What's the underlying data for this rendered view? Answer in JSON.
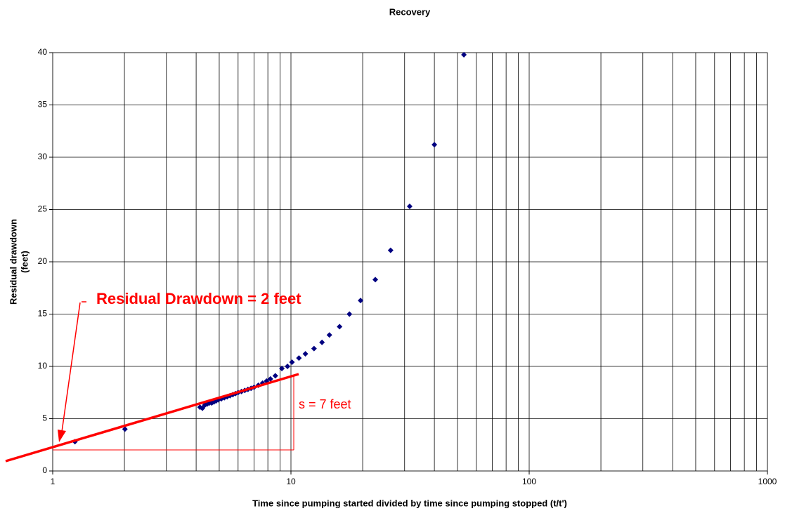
{
  "chart_data": {
    "type": "scatter",
    "title": "Recovery",
    "xlabel": "Time since pumping started divided by time since pumping stopped (t/t')",
    "ylabel": [
      "Residual drawdown",
      "(feet)"
    ],
    "xscale": "log",
    "xlim": [
      1,
      1000
    ],
    "xticks": [
      1,
      10,
      100,
      1000
    ],
    "xminor": true,
    "ylim": [
      0,
      40
    ],
    "yticks": [
      0,
      5,
      10,
      15,
      20,
      25,
      30,
      35,
      40
    ],
    "grid": true,
    "annotations": [
      "Residual Drawdown = 2 feet",
      "s = 7 feet"
    ],
    "series": [
      {
        "name": "Recovery",
        "color": "#000080",
        "x": [
          1.24,
          2.01,
          4.15,
          4.25,
          4.35,
          4.45,
          4.55,
          4.65,
          4.75,
          4.85,
          4.95,
          5.1,
          5.25,
          5.4,
          5.55,
          5.7,
          5.85,
          6.0,
          6.2,
          6.4,
          6.6,
          6.8,
          7.0,
          7.3,
          7.6,
          7.9,
          8.2,
          8.6,
          9.16,
          9.67,
          10.1,
          10.8,
          11.5,
          12.5,
          13.5,
          14.5,
          16.0,
          17.6,
          19.6,
          22.6,
          26.2,
          31.5,
          40.0,
          53.2
        ],
        "values": [
          2.8,
          4.0,
          6.1,
          6.0,
          6.3,
          6.4,
          6.5,
          6.5,
          6.6,
          6.7,
          6.8,
          6.9,
          7.0,
          7.1,
          7.2,
          7.3,
          7.4,
          7.5,
          7.6,
          7.7,
          7.8,
          7.9,
          8.0,
          8.2,
          8.4,
          8.6,
          8.8,
          9.1,
          9.8,
          10.0,
          10.4,
          10.8,
          11.2,
          11.7,
          12.3,
          13.0,
          13.8,
          15.0,
          16.3,
          18.3,
          21.1,
          25.3,
          31.2,
          39.8
        ]
      }
    ]
  }
}
